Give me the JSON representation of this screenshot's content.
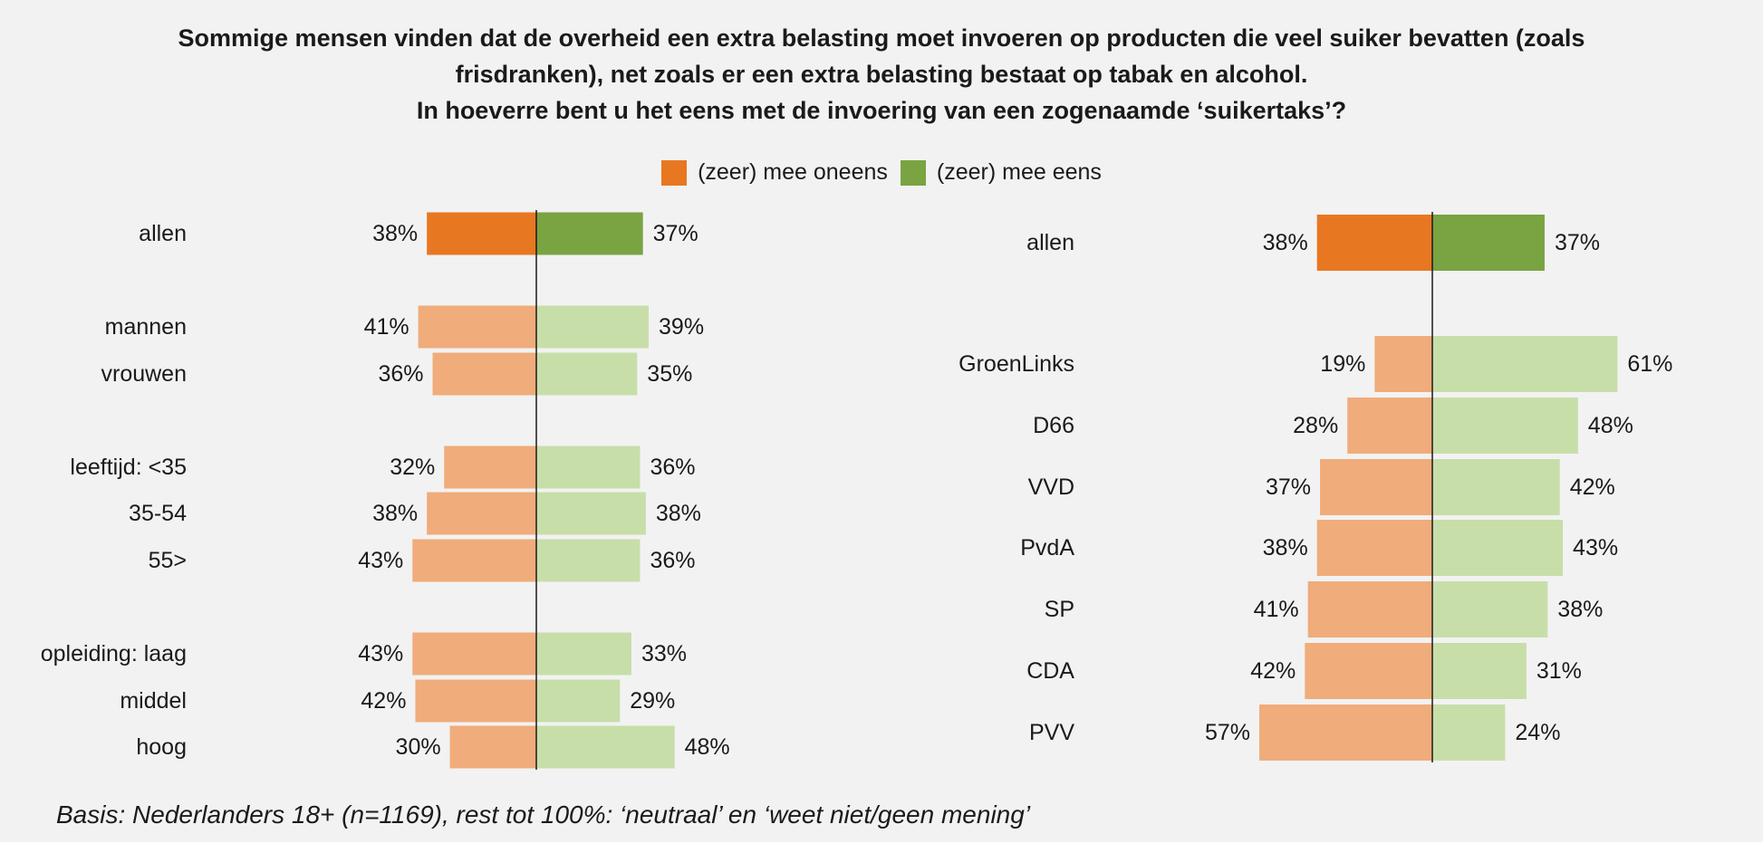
{
  "title_lines": [
    "Sommige mensen vinden dat de overheid een extra belasting moet invoeren op producten die veel suiker bevatten (zoals",
    "frisdranken), net zoals er een extra belasting bestaat op tabak en alcohol.",
    "In hoeverre bent u het eens met de invoering van een zogenaamde ‘suikertaks’?"
  ],
  "legend": [
    {
      "label": "(zeer) mee oneens",
      "color": "#e87722"
    },
    {
      "label": "(zeer) mee eens",
      "color": "#7aa342"
    }
  ],
  "colors": {
    "disagree_strong": "#e87722",
    "agree_strong": "#7aa342",
    "disagree_light": "#f0ac7a",
    "agree_light": "#c8dea9"
  },
  "footnote": "Basis: Nederlanders 18+ (n=1169), rest tot 100%: ‘neutraal’ en ‘weet niet/geen mening’",
  "chart_data": [
    {
      "type": "bar",
      "orientation": "diverging-horizontal",
      "categories": [
        "allen",
        "mannen",
        "vrouwen",
        "leeftijd: <35",
        "35-54",
        "55>",
        "opleiding: laag",
        "middel",
        "hoog"
      ],
      "series": [
        {
          "name": "(zeer) mee oneens",
          "values": [
            38,
            41,
            36,
            32,
            38,
            43,
            43,
            42,
            30
          ]
        },
        {
          "name": "(zeer) mee eens",
          "values": [
            37,
            39,
            35,
            36,
            38,
            36,
            33,
            29,
            48
          ]
        }
      ],
      "value_labels": {
        "disagree": [
          "38%",
          "41%",
          "36%",
          "32%",
          "38%",
          "43%",
          "43%",
          "42%",
          "30%"
        ],
        "agree": [
          "37%",
          "39%",
          "35%",
          "36%",
          "38%",
          "36%",
          "33%",
          "29%",
          "48%"
        ]
      },
      "highlight_category": "allen",
      "grid": false
    },
    {
      "type": "bar",
      "orientation": "diverging-horizontal",
      "categories": [
        "allen",
        "GroenLinks",
        "D66",
        "VVD",
        "PvdA",
        "SP",
        "CDA",
        "PVV"
      ],
      "series": [
        {
          "name": "(zeer) mee oneens",
          "values": [
            38,
            19,
            28,
            37,
            38,
            41,
            42,
            57
          ]
        },
        {
          "name": "(zeer) mee eens",
          "values": [
            37,
            61,
            48,
            42,
            43,
            38,
            31,
            24
          ]
        }
      ],
      "value_labels": {
        "disagree": [
          "38%",
          "19%",
          "28%",
          "37%",
          "38%",
          "41%",
          "42%",
          "57%"
        ],
        "agree": [
          "37%",
          "61%",
          "48%",
          "42%",
          "43%",
          "38%",
          "31%",
          "24%"
        ]
      },
      "highlight_category": "allen",
      "grid": false
    }
  ]
}
